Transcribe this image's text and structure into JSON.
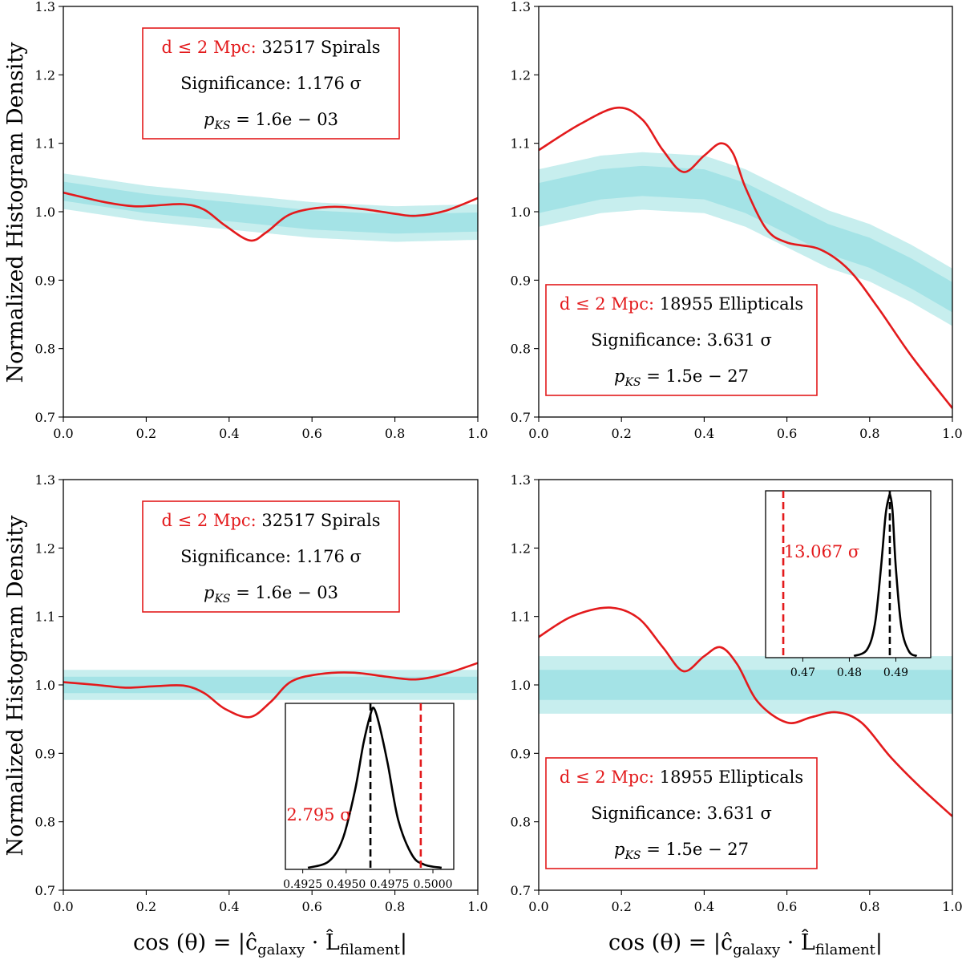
{
  "figure": {
    "ylabel": "Normalized Histogram Density",
    "xlabel": "cos (θ) = |ĉ",
    "xlabel_sub1": "galaxy",
    "xlabel_dot": " · L̂",
    "xlabel_sub2": "filament",
    "xlabel_end": "|"
  },
  "chart_data": [
    {
      "type": "line",
      "panel": "top-left",
      "xlim": [
        0.0,
        1.0
      ],
      "ylim": [
        0.7,
        1.3
      ],
      "x_ticks": [
        0.0,
        0.2,
        0.4,
        0.6,
        0.8,
        1.0
      ],
      "x_tick_labels": [
        "0.0",
        "0.2",
        "0.4",
        "0.6",
        "0.8",
        "1.0"
      ],
      "y_ticks": [
        0.7,
        0.8,
        0.9,
        1.0,
        1.1,
        1.2,
        1.3
      ],
      "y_tick_labels": [
        "0.7",
        "0.8",
        "0.9",
        "1.0",
        "1.1",
        "1.2",
        "1.3"
      ],
      "show_ylabel": true,
      "show_xlabel": false,
      "annotation": {
        "placement": "top-center",
        "line1_red": "d ≤ 2 Mpc:",
        "line1_rest": "32517 Spirals",
        "line2": "Significance:  1.176 σ",
        "line3_p": "p",
        "line3_sub": "KS",
        "line3_rest": " = 1.6e − 03"
      },
      "series": [
        {
          "name": "observed",
          "color": "#e31a1c",
          "x": [
            0.0,
            0.1,
            0.17,
            0.22,
            0.29,
            0.34,
            0.39,
            0.45,
            0.49,
            0.55,
            0.64,
            0.72,
            0.8,
            0.85,
            0.92,
            1.0
          ],
          "values": [
            1.028,
            1.014,
            1.008,
            1.009,
            1.011,
            1.003,
            0.98,
            0.958,
            0.97,
            0.997,
            1.007,
            1.004,
            0.997,
            0.994,
            1.001,
            1.02
          ]
        }
      ],
      "band": {
        "name": "random expectation",
        "x": [
          0.0,
          0.2,
          0.4,
          0.6,
          0.8,
          1.0
        ],
        "inner": [
          1.0,
          1.006,
          1.0,
          0.992,
          0.988,
          0.988
        ],
        "inner_halfwidth": [
          0.014,
          0.014,
          0.014,
          0.014,
          0.014,
          0.014
        ],
        "outer_halfwidth": [
          0.026,
          0.026,
          0.026,
          0.026,
          0.026,
          0.026
        ],
        "center": [
          1.03,
          1.012,
          1.0,
          0.988,
          0.982,
          0.985
        ]
      },
      "colors": {
        "band_outer": "#c7eeee",
        "band_inner": "#a4e3e6"
      }
    },
    {
      "type": "line",
      "panel": "top-right",
      "xlim": [
        0.0,
        1.0
      ],
      "ylim": [
        0.7,
        1.3
      ],
      "x_ticks": [
        0.0,
        0.2,
        0.4,
        0.6,
        0.8,
        1.0
      ],
      "x_tick_labels": [
        "0.0",
        "0.2",
        "0.4",
        "0.6",
        "0.8",
        "1.0"
      ],
      "y_ticks": [
        0.7,
        0.8,
        0.9,
        1.0,
        1.1,
        1.2,
        1.3
      ],
      "y_tick_labels": [
        "0.7",
        "0.8",
        "0.9",
        "1.0",
        "1.1",
        "1.2",
        "1.3"
      ],
      "show_ylabel": false,
      "show_xlabel": false,
      "annotation": {
        "placement": "lower-center",
        "line1_red": "d ≤ 2 Mpc:",
        "line1_rest": "18955 Ellipticals",
        "line2": "Significance:  3.631 σ",
        "line3_p": "p",
        "line3_sub": "KS",
        "line3_rest": " = 1.5e − 27"
      },
      "series": [
        {
          "name": "observed",
          "color": "#e31a1c",
          "x": [
            0.0,
            0.1,
            0.19,
            0.25,
            0.3,
            0.35,
            0.4,
            0.44,
            0.47,
            0.5,
            0.55,
            0.6,
            0.68,
            0.75,
            0.82,
            0.9,
            1.0
          ],
          "values": [
            1.09,
            1.128,
            1.152,
            1.135,
            1.09,
            1.058,
            1.082,
            1.1,
            1.085,
            1.035,
            0.975,
            0.955,
            0.945,
            0.915,
            0.86,
            0.79,
            0.713
          ]
        }
      ],
      "band": {
        "name": "random expectation",
        "x": [
          0.0,
          0.15,
          0.25,
          0.4,
          0.5,
          0.6,
          0.7,
          0.8,
          0.9,
          1.0
        ],
        "center": [
          1.02,
          1.04,
          1.045,
          1.04,
          1.02,
          0.99,
          0.96,
          0.94,
          0.91,
          0.875
        ],
        "inner_halfwidth": [
          0.022,
          0.022,
          0.022,
          0.022,
          0.022,
          0.022,
          0.022,
          0.022,
          0.022,
          0.022
        ],
        "outer_halfwidth": [
          0.042,
          0.042,
          0.042,
          0.042,
          0.042,
          0.042,
          0.042,
          0.042,
          0.042,
          0.042
        ]
      },
      "colors": {
        "band_outer": "#c7eeee",
        "band_inner": "#a4e3e6"
      }
    },
    {
      "type": "line",
      "panel": "bottom-left",
      "xlim": [
        0.0,
        1.0
      ],
      "ylim": [
        0.7,
        1.3
      ],
      "x_ticks": [
        0.0,
        0.2,
        0.4,
        0.6,
        0.8,
        1.0
      ],
      "x_tick_labels": [
        "0.0",
        "0.2",
        "0.4",
        "0.6",
        "0.8",
        "1.0"
      ],
      "y_ticks": [
        0.7,
        0.8,
        0.9,
        1.0,
        1.1,
        1.2,
        1.3
      ],
      "y_tick_labels": [
        "0.7",
        "0.8",
        "0.9",
        "1.0",
        "1.1",
        "1.2",
        "1.3"
      ],
      "show_ylabel": true,
      "show_xlabel": true,
      "annotation": {
        "placement": "top-center",
        "line1_red": "d ≤ 2 Mpc:",
        "line1_rest": "32517 Spirals",
        "line2": "Significance:  1.176 σ",
        "line3_p": "p",
        "line3_sub": "KS",
        "line3_rest": " = 1.6e − 03"
      },
      "series": [
        {
          "name": "observed",
          "color": "#e31a1c",
          "x": [
            0.0,
            0.08,
            0.15,
            0.22,
            0.29,
            0.34,
            0.39,
            0.45,
            0.5,
            0.55,
            0.62,
            0.7,
            0.78,
            0.85,
            0.92,
            1.0
          ],
          "values": [
            1.004,
            1.0,
            0.996,
            0.998,
            0.999,
            0.988,
            0.965,
            0.953,
            0.975,
            1.005,
            1.016,
            1.018,
            1.012,
            1.008,
            1.016,
            1.032
          ]
        }
      ],
      "band": {
        "name": "random expectation",
        "x": [
          0.0,
          0.5,
          1.0
        ],
        "center": [
          1.0,
          1.0,
          1.0
        ],
        "inner_halfwidth": [
          0.012,
          0.012,
          0.012
        ],
        "outer_halfwidth": [
          0.022,
          0.022,
          0.022
        ]
      },
      "colors": {
        "band_outer": "#c7eeee",
        "band_inner": "#a4e3e6"
      },
      "inset": {
        "type": "line",
        "placement": "lower-right",
        "xlim": [
          0.4915,
          0.5012
        ],
        "x_ticks": [
          0.4925,
          0.495,
          0.4975,
          0.5
        ],
        "x_tick_labels": [
          "0.4925",
          "0.4950",
          "0.4975",
          "0.5000"
        ],
        "observed_value": 0.4993,
        "mean_value": 0.4964,
        "sigma_label": "2.795 σ",
        "distribution": {
          "x": [
            0.4928,
            0.494,
            0.4948,
            0.4955,
            0.496,
            0.4964,
            0.4966,
            0.4969,
            0.4974,
            0.498,
            0.4988,
            0.4995,
            0.5005
          ],
          "values": [
            0.0,
            0.04,
            0.18,
            0.48,
            0.78,
            0.96,
            1.0,
            0.9,
            0.65,
            0.3,
            0.08,
            0.02,
            0.0
          ]
        }
      }
    },
    {
      "type": "line",
      "panel": "bottom-right",
      "xlim": [
        0.0,
        1.0
      ],
      "ylim": [
        0.7,
        1.3
      ],
      "x_ticks": [
        0.0,
        0.2,
        0.4,
        0.6,
        0.8,
        1.0
      ],
      "x_tick_labels": [
        "0.0",
        "0.2",
        "0.4",
        "0.6",
        "0.8",
        "1.0"
      ],
      "y_ticks": [
        0.7,
        0.8,
        0.9,
        1.0,
        1.1,
        1.2,
        1.3
      ],
      "y_tick_labels": [
        "0.7",
        "0.8",
        "0.9",
        "1.0",
        "1.1",
        "1.2",
        "1.3"
      ],
      "show_ylabel": false,
      "show_xlabel": true,
      "annotation": {
        "placement": "lower-center",
        "line1_red": "d ≤ 2 Mpc:",
        "line1_rest": "18955 Ellipticals",
        "line2": "Significance:  3.631 σ",
        "line3_p": "p",
        "line3_sub": "KS",
        "line3_rest": " = 1.5e − 27"
      },
      "series": [
        {
          "name": "observed",
          "color": "#e31a1c",
          "x": [
            0.0,
            0.08,
            0.17,
            0.24,
            0.3,
            0.35,
            0.4,
            0.44,
            0.48,
            0.53,
            0.6,
            0.66,
            0.72,
            0.78,
            0.85,
            0.92,
            1.0
          ],
          "values": [
            1.07,
            1.1,
            1.113,
            1.098,
            1.055,
            1.02,
            1.042,
            1.055,
            1.03,
            0.975,
            0.945,
            0.953,
            0.96,
            0.945,
            0.895,
            0.852,
            0.808
          ]
        }
      ],
      "band": {
        "name": "random expectation",
        "x": [
          0.0,
          0.5,
          1.0
        ],
        "center": [
          1.0,
          1.0,
          1.0
        ],
        "inner_halfwidth": [
          0.022,
          0.022,
          0.022
        ],
        "outer_halfwidth": [
          0.042,
          0.042,
          0.042
        ]
      },
      "colors": {
        "band_outer": "#c7eeee",
        "band_inner": "#a4e3e6"
      },
      "inset": {
        "type": "line",
        "placement": "upper-right",
        "xlim": [
          0.462,
          0.4975
        ],
        "x_ticks": [
          0.47,
          0.48,
          0.49
        ],
        "x_tick_labels": [
          "0.47",
          "0.48",
          "0.49"
        ],
        "observed_value": 0.4658,
        "mean_value": 0.4887,
        "sigma_label": "13.067 σ",
        "distribution": {
          "x": [
            0.481,
            0.4838,
            0.4855,
            0.4868,
            0.4878,
            0.4885,
            0.4888,
            0.4893,
            0.49,
            0.4912,
            0.4928,
            0.4945
          ],
          "values": [
            0.0,
            0.04,
            0.2,
            0.55,
            0.88,
            0.99,
            1.0,
            0.9,
            0.55,
            0.18,
            0.03,
            0.0
          ]
        }
      }
    }
  ]
}
